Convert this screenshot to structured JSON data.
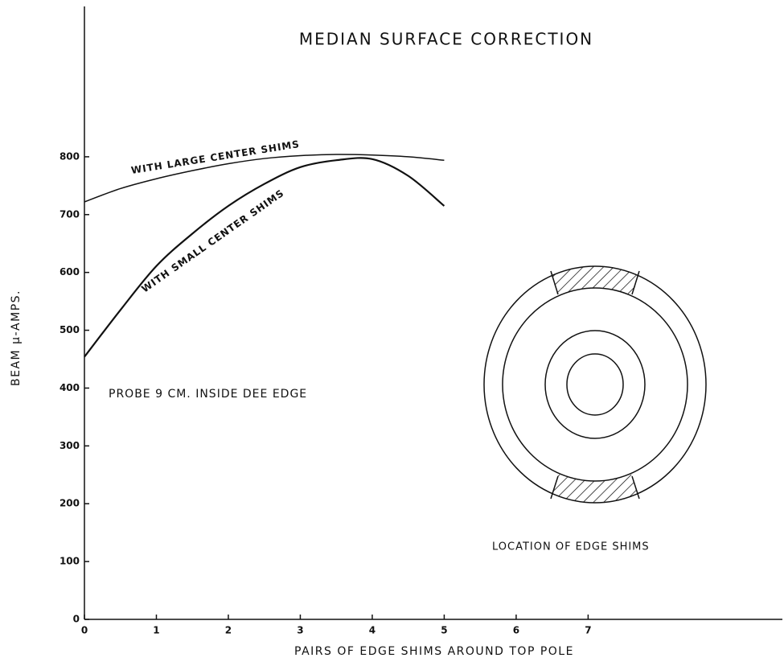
{
  "chart_data": {
    "type": "line",
    "title": "MEDIAN SURFACE CORRECTION",
    "xlabel": "PAIRS OF EDGE SHIMS AROUND TOP POLE",
    "ylabel": "BEAM μ-AMPS.",
    "x": [
      0,
      0.5,
      1,
      1.5,
      2,
      2.5,
      3,
      3.5,
      4,
      4.5,
      5
    ],
    "series": [
      {
        "name": "WITH LARGE CENTER SHIMS",
        "color": "#111111",
        "values": [
          722,
          745,
          762,
          776,
          788,
          797,
          802,
          804,
          803,
          800,
          794
        ]
      },
      {
        "name": "WITH SMALL CENTER SHIMS",
        "color": "#111111",
        "values": [
          454,
          535,
          611,
          667,
          715,
          753,
          782,
          794,
          796,
          767,
          715
        ]
      }
    ],
    "annotations": [
      "PROBE 9 CM. INSIDE DEE EDGE",
      "LOCATION OF EDGE SHIMS"
    ],
    "xlim": [
      0,
      9.7
    ],
    "ylim": [
      0,
      1060
    ],
    "xticks": [
      0,
      1,
      2,
      3,
      4,
      5,
      6,
      7
    ],
    "yticks": [
      0,
      100,
      200,
      300,
      400,
      500,
      600,
      700,
      800
    ],
    "grid": false
  }
}
